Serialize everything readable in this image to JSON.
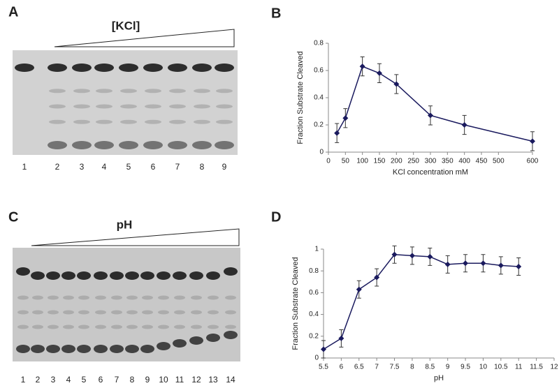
{
  "panels": [
    "A",
    "B",
    "C",
    "D"
  ],
  "gels": [
    {
      "label": "[KCl]",
      "lanes": [
        "1",
        "2",
        "3",
        "4",
        "5",
        "6",
        "7",
        "8",
        "9"
      ]
    },
    {
      "label": "pH",
      "lanes": [
        "1",
        "2",
        "3",
        "4",
        "5",
        "6",
        "7",
        "8",
        "9",
        "10",
        "11",
        "12",
        "13",
        "14"
      ]
    }
  ],
  "chart_data": [
    {
      "type": "line",
      "x_label": "KCl concentration mM",
      "y_label": "Fraction Substrate Cleaved",
      "x": [
        25,
        50,
        100,
        150,
        200,
        300,
        400,
        600
      ],
      "series": [
        {
          "color": "#1a1a5e",
          "values": [
            0.14,
            0.25,
            0.63,
            0.58,
            0.5,
            0.27,
            0.2,
            0.08
          ],
          "errors": [
            0.07,
            0.07,
            0.07,
            0.07,
            0.07,
            0.07,
            0.07,
            0.07
          ]
        }
      ],
      "xlim": [
        0,
        600
      ],
      "xticks": [
        0,
        50,
        100,
        150,
        200,
        250,
        300,
        350,
        400,
        450,
        500,
        600
      ],
      "ylim": [
        0,
        0.8
      ],
      "yticks": [
        0,
        0.2,
        0.4,
        0.6,
        0.8
      ],
      "grid": false
    },
    {
      "type": "line",
      "x_label": "pH",
      "y_label": "Fraction Substrate Cleaved",
      "x": [
        5.5,
        6,
        6.5,
        7,
        7.5,
        8,
        8.5,
        9,
        9.5,
        10,
        10.5,
        11
      ],
      "series": [
        {
          "color": "#1a1a5e",
          "values": [
            0.08,
            0.18,
            0.63,
            0.74,
            0.95,
            0.94,
            0.93,
            0.86,
            0.87,
            0.87,
            0.85,
            0.84
          ],
          "errors": [
            0.08,
            0.08,
            0.08,
            0.08,
            0.08,
            0.08,
            0.08,
            0.08,
            0.08,
            0.08,
            0.08,
            0.08
          ]
        }
      ],
      "xlim": [
        5.5,
        12
      ],
      "xticks": [
        5.5,
        6,
        6.5,
        7,
        7.5,
        8,
        8.5,
        9,
        9.5,
        10,
        10.5,
        11,
        11.5,
        12
      ],
      "ylim": [
        0,
        1
      ],
      "yticks": [
        0,
        0.2,
        0.4,
        0.6,
        0.8,
        1
      ],
      "grid": false
    }
  ]
}
